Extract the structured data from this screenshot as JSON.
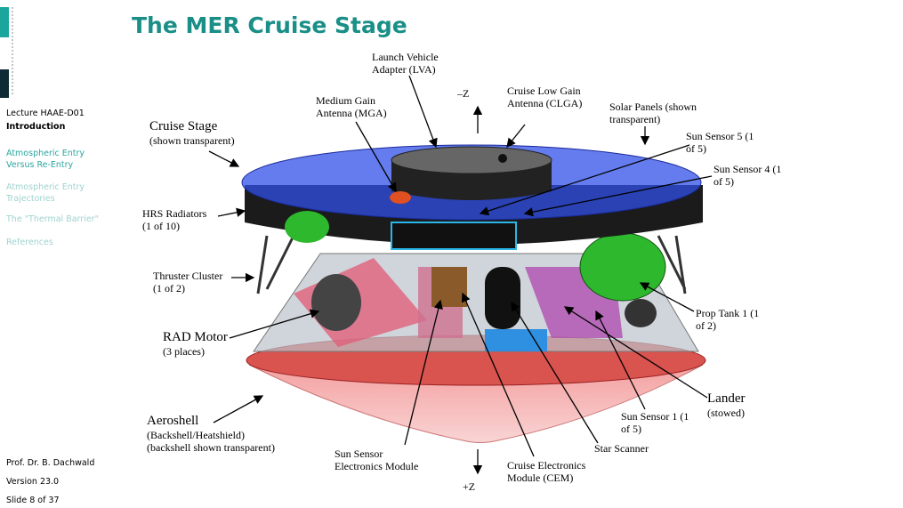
{
  "sidebar": {
    "lecture": "Lecture HAAE-D01",
    "nav": [
      "Introduction",
      "Atmospheric Entry Versus Re-Entry",
      "Atmospheric Entry Trajectories",
      "The \"Thermal Barrier\"",
      "References"
    ],
    "footer": [
      "Prof. Dr. B. Dachwald",
      "Version 23.0",
      "Slide 8 of 37"
    ]
  },
  "title": "The MER Cruise Stage",
  "labels": [
    [
      "Launch Vehicle",
      "Adapter (LVA)"
    ],
    [
      "–Z"
    ],
    [
      "Cruise Low Gain",
      "Antenna (CLGA)"
    ],
    [
      "Medium Gain",
      "Antenna (MGA)"
    ],
    [
      "Solar Panels (shown",
      "transparent)"
    ],
    [
      "Cruise Stage",
      "(shown transparent)"
    ],
    [
      "Sun Sensor 5 (1",
      "of 5)"
    ],
    [
      "Sun Sensor 4 (1",
      "of 5)"
    ],
    [
      "HRS Radiators",
      "(1 of 10)"
    ],
    [
      "Thruster Cluster",
      "(1 of 2)"
    ],
    [
      "Prop Tank 1 (1",
      "of 2)"
    ],
    [
      "RAD Motor",
      "(3 places)"
    ],
    [
      "Lander",
      "(stowed)"
    ],
    [
      "Aeroshell",
      "(Backshell/Heatshield)",
      "(backshell shown transparent)"
    ],
    [
      "Sun Sensor 1 (1",
      "of 5)"
    ],
    [
      "Star Scanner"
    ],
    [
      "Sun Sensor",
      "Electronics Module"
    ],
    [
      "Cruise Electronics",
      "Module (CEM)"
    ],
    [
      "+Z"
    ]
  ]
}
